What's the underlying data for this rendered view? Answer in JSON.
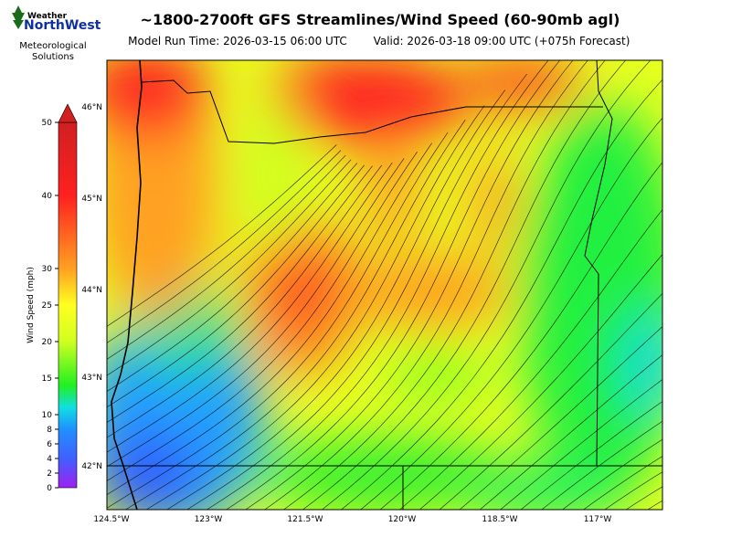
{
  "logo": {
    "brand_top": "Weather",
    "brand_main": "NorthWest",
    "line1": "Meteorological",
    "line2": "Solutions"
  },
  "title": "~1800-2700ft GFS Streamlines/Wind Speed (60-90mb agl)",
  "model_run": "Model Run Time: 2026-03-15 06:00 UTC",
  "valid": "Valid: 2026-03-18 09:00 UTC  (+075h Forecast)",
  "colorbar": {
    "label": "Wind Speed (mph)",
    "range": [
      0,
      50
    ],
    "ticks": [
      0,
      2,
      4,
      6,
      8,
      10,
      15,
      20,
      25,
      30,
      40,
      50
    ]
  },
  "map": {
    "lat_labels": [
      "46°N",
      "45°N",
      "44°N",
      "43°N",
      "42°N"
    ],
    "lon_labels": [
      "124.5°W",
      "123°W",
      "121.5°W",
      "120°W",
      "118.5°W",
      "117°W"
    ]
  }
}
